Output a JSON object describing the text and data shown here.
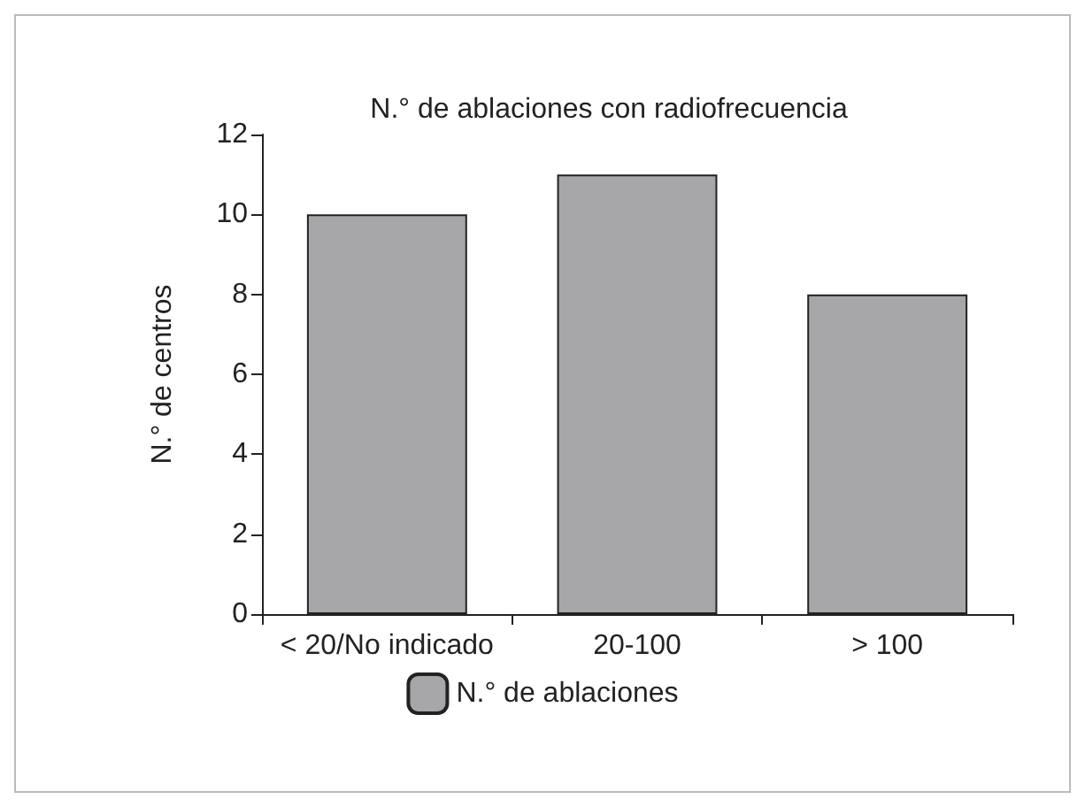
{
  "chart_data": {
    "type": "bar",
    "title": "N.° de ablaciones con radiofrecuencia",
    "ylabel": "N.° de centros",
    "categories": [
      "< 20/No indicado",
      "20-100",
      "> 100"
    ],
    "series": [
      {
        "name": "N.° de ablaciones",
        "color": "#a7a7a9",
        "values": [
          10,
          11,
          8
        ]
      }
    ],
    "ylim": [
      0,
      12
    ],
    "yticks": [
      0,
      2,
      4,
      6,
      8,
      10,
      12
    ],
    "grid": false,
    "legend": "bottom"
  }
}
